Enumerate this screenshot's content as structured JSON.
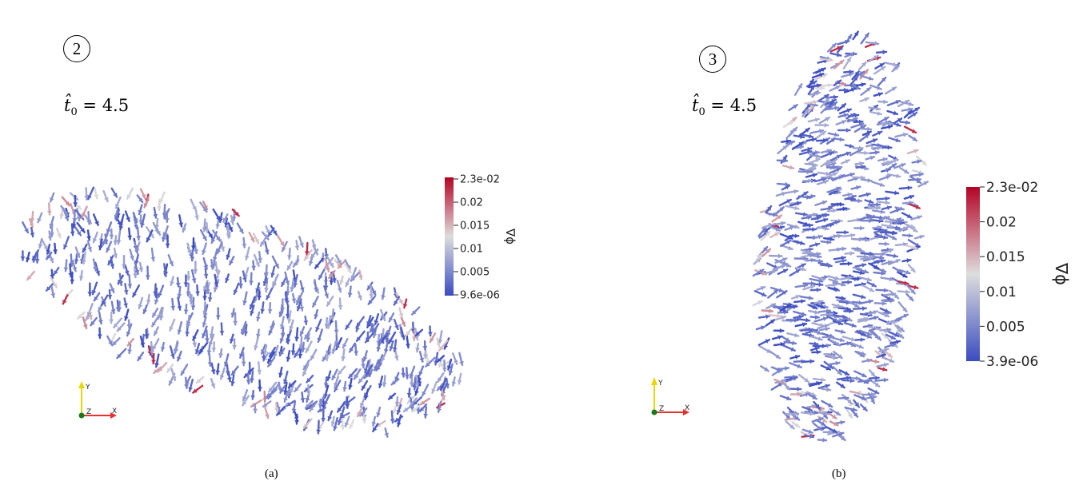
{
  "panels": [
    {
      "id": "a",
      "badge": "2",
      "time_label": {
        "var": "t̂",
        "sub": "0",
        "eq": "= 4.5"
      },
      "caption": "(a)",
      "colorbar": {
        "title": "∇ϕ",
        "ticks": [
          "2.3e-02",
          "0.02",
          "0.015",
          "0.01",
          "0.005",
          "9.6e-06"
        ]
      },
      "axes_triad": {
        "x": "X",
        "y": "Y",
        "z": "Z"
      }
    },
    {
      "id": "b",
      "badge": "3",
      "time_label": {
        "var": "t̂",
        "sub": "0",
        "eq": "= 4.5"
      },
      "caption": "(b)",
      "colorbar": {
        "title": "∇ϕ",
        "ticks": [
          "2.3e-02",
          "0.02",
          "0.015",
          "0.01",
          "0.005",
          "3.9e-06"
        ]
      },
      "axes_triad": {
        "x": "X",
        "y": "Y",
        "z": "Z"
      }
    }
  ],
  "colors": {
    "low": "#3b4cc0",
    "mid": "#dddddd",
    "high": "#b40426"
  }
}
